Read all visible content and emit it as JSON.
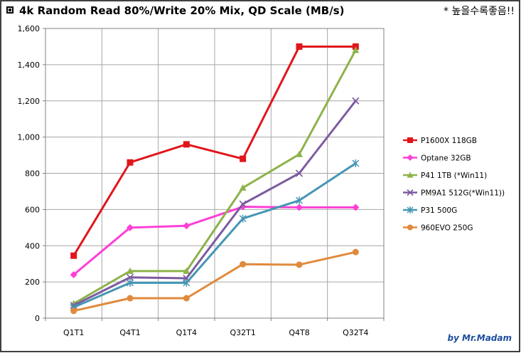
{
  "header": {
    "title": "4k Random Read 80%/Write 20% Mix, QD Scale (MB/s)",
    "note": "* 높을수록좋음!!"
  },
  "credit": "by Mr.Madam",
  "colors": {
    "credit": "#1F4E9E",
    "frame": "#000000",
    "grid": "#a6a6a6"
  },
  "chart_data": {
    "type": "line",
    "title": "4k Random Read 80%/Write 20% Mix, QD Scale (MB/s)",
    "xlabel": "",
    "ylabel": "",
    "categories": [
      "Q1T1",
      "Q4T1",
      "Q1T4",
      "Q32T1",
      "Q4T8",
      "Q32T4"
    ],
    "ylim": [
      0,
      1600
    ],
    "yticks": [
      0,
      200,
      400,
      600,
      800,
      1000,
      1200,
      1400,
      1600
    ],
    "ytick_labels": [
      "0",
      "200",
      "400",
      "600",
      "800",
      "1,000",
      "1,200",
      "1,400",
      "1,600"
    ],
    "grid": true,
    "legend_position": "right",
    "series": [
      {
        "name": "P1600X 118GB",
        "color": "#E0161C",
        "marker": "square",
        "values": [
          345,
          860,
          960,
          880,
          1500,
          1500
        ]
      },
      {
        "name": "Optane 32GB",
        "color": "#FF3FD6",
        "marker": "diamond",
        "values": [
          240,
          500,
          510,
          615,
          612,
          612
        ]
      },
      {
        "name": "P41 1TB (*Win11)",
        "color": "#8DB34A",
        "marker": "triangle",
        "values": [
          80,
          260,
          260,
          720,
          905,
          1480
        ]
      },
      {
        "name": "PM9A1 512G(*Win11))",
        "color": "#7D5AA0",
        "marker": "x",
        "values": [
          70,
          225,
          220,
          630,
          800,
          1200
        ]
      },
      {
        "name": "P31 500G",
        "color": "#4596B4",
        "marker": "star",
        "values": [
          60,
          195,
          195,
          550,
          650,
          855
        ]
      },
      {
        "name": "960EVO 250G",
        "color": "#E08A3C",
        "marker": "circle",
        "values": [
          40,
          110,
          110,
          298,
          295,
          365
        ]
      }
    ]
  }
}
